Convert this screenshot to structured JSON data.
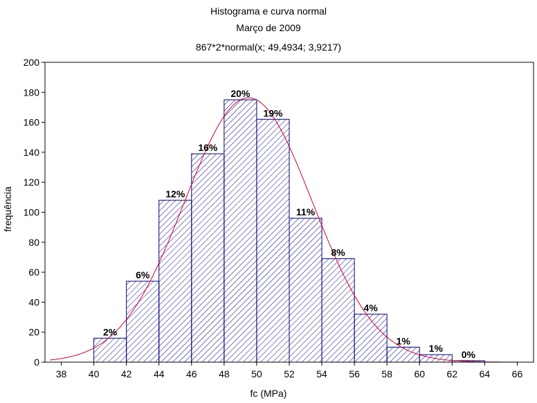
{
  "chart_data": {
    "type": "bar",
    "title": "Histograma e curva normal",
    "subtitle": "Março de 2009",
    "fit_label": "867*2*normal(x; 49,4934; 3,9217)",
    "xlabel": "fc (MPa)",
    "ylabel": "frequência",
    "xlim": [
      37,
      67
    ],
    "ylim": [
      0,
      200
    ],
    "x_ticks": [
      38,
      40,
      42,
      44,
      46,
      48,
      50,
      52,
      54,
      56,
      58,
      60,
      62,
      64,
      66
    ],
    "y_ticks": [
      0,
      20,
      40,
      60,
      80,
      100,
      120,
      140,
      160,
      180,
      200
    ],
    "bins": [
      {
        "from": 40,
        "to": 42,
        "value": 16,
        "label": "2%"
      },
      {
        "from": 42,
        "to": 44,
        "value": 54,
        "label": "6%"
      },
      {
        "from": 44,
        "to": 46,
        "value": 108,
        "label": "12%"
      },
      {
        "from": 46,
        "to": 48,
        "value": 139,
        "label": "16%"
      },
      {
        "from": 48,
        "to": 50,
        "value": 175,
        "label": "20%"
      },
      {
        "from": 50,
        "to": 52,
        "value": 162,
        "label": "19%"
      },
      {
        "from": 52,
        "to": 54,
        "value": 96,
        "label": "11%"
      },
      {
        "from": 54,
        "to": 56,
        "value": 69,
        "label": "8%"
      },
      {
        "from": 56,
        "to": 58,
        "value": 32,
        "label": "4%"
      },
      {
        "from": 58,
        "to": 60,
        "value": 10,
        "label": "1%"
      },
      {
        "from": 60,
        "to": 62,
        "value": 5,
        "label": "1%"
      },
      {
        "from": 62,
        "to": 64,
        "value": 1,
        "label": "0%"
      }
    ],
    "normal_fit": {
      "n": 867,
      "bin_width": 2,
      "mean": 49.4934,
      "sd": 3.9217
    },
    "colors": {
      "bar_edge": "#00007f",
      "hatch": "#00007f",
      "curve": "#cc0033",
      "frame": "#000000"
    },
    "grid": false
  }
}
